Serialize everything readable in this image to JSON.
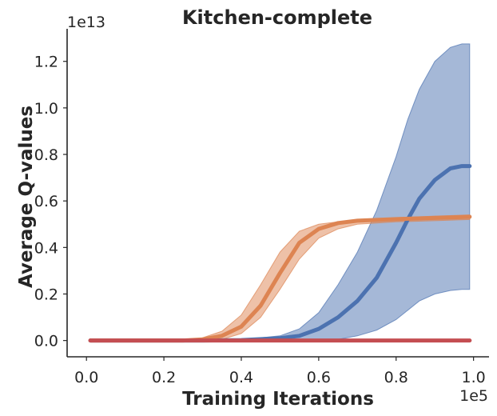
{
  "chart_data": {
    "type": "line",
    "title": "Kitchen-complete",
    "xlabel": "Training Iterations",
    "ylabel": "Average Q-values",
    "x_offset_label": "1e5",
    "y_offset_label": "1e13",
    "xlim": [
      -0.05,
      1.04
    ],
    "ylim": [
      -0.07,
      1.34
    ],
    "x_ticks": [
      0.0,
      0.2,
      0.4,
      0.6,
      0.8,
      1.0
    ],
    "x_tick_labels": [
      "0.0",
      "0.2",
      "0.4",
      "0.6",
      "0.8",
      "1.0"
    ],
    "y_ticks": [
      0.0,
      0.2,
      0.4,
      0.6,
      0.8,
      1.0,
      1.2
    ],
    "y_tick_labels": [
      "0.0",
      "0.2",
      "0.4",
      "0.6",
      "0.8",
      "1.0",
      "1.2"
    ],
    "grid": false,
    "legend": "none",
    "series": [
      {
        "color": "#4c72b0",
        "x": [
          0.01,
          0.3,
          0.4,
          0.5,
          0.55,
          0.6,
          0.65,
          0.7,
          0.75,
          0.8,
          0.83,
          0.86,
          0.9,
          0.94,
          0.97,
          0.99
        ],
        "mean": [
          0.0,
          0.0,
          0.002,
          0.01,
          0.02,
          0.05,
          0.1,
          0.17,
          0.27,
          0.42,
          0.52,
          0.61,
          0.69,
          0.74,
          0.75,
          0.75
        ],
        "lower": [
          0.0,
          0.0,
          0.0,
          0.0,
          0.0,
          0.0,
          0.005,
          0.02,
          0.045,
          0.09,
          0.13,
          0.17,
          0.2,
          0.215,
          0.22,
          0.22
        ],
        "upper": [
          0.0,
          0.0,
          0.003,
          0.02,
          0.05,
          0.12,
          0.24,
          0.38,
          0.56,
          0.79,
          0.95,
          1.08,
          1.2,
          1.26,
          1.275,
          1.275
        ]
      },
      {
        "color": "#dd8452",
        "x": [
          0.01,
          0.25,
          0.3,
          0.35,
          0.4,
          0.45,
          0.5,
          0.55,
          0.6,
          0.65,
          0.7,
          0.8,
          0.9,
          0.99
        ],
        "mean": [
          0.0,
          0.0,
          0.005,
          0.02,
          0.06,
          0.15,
          0.29,
          0.42,
          0.48,
          0.505,
          0.515,
          0.522,
          0.527,
          0.532
        ],
        "lower": [
          0.0,
          0.0,
          0.0,
          0.005,
          0.03,
          0.1,
          0.22,
          0.35,
          0.44,
          0.48,
          0.5,
          0.51,
          0.515,
          0.52
        ],
        "upper": [
          0.0,
          0.0,
          0.012,
          0.04,
          0.11,
          0.24,
          0.38,
          0.47,
          0.5,
          0.51,
          0.518,
          0.528,
          0.535,
          0.54
        ]
      },
      {
        "color": "#c44e52",
        "x": [
          0.01,
          0.2,
          0.4,
          0.6,
          0.8,
          0.99
        ],
        "mean": [
          0.0,
          0.0,
          0.0,
          0.0,
          0.0,
          0.0
        ],
        "lower": [
          0.0,
          0.0,
          0.0,
          0.0,
          0.0,
          0.0
        ],
        "upper": [
          0.0,
          0.0,
          0.0,
          0.0,
          0.0,
          0.0
        ]
      }
    ]
  }
}
